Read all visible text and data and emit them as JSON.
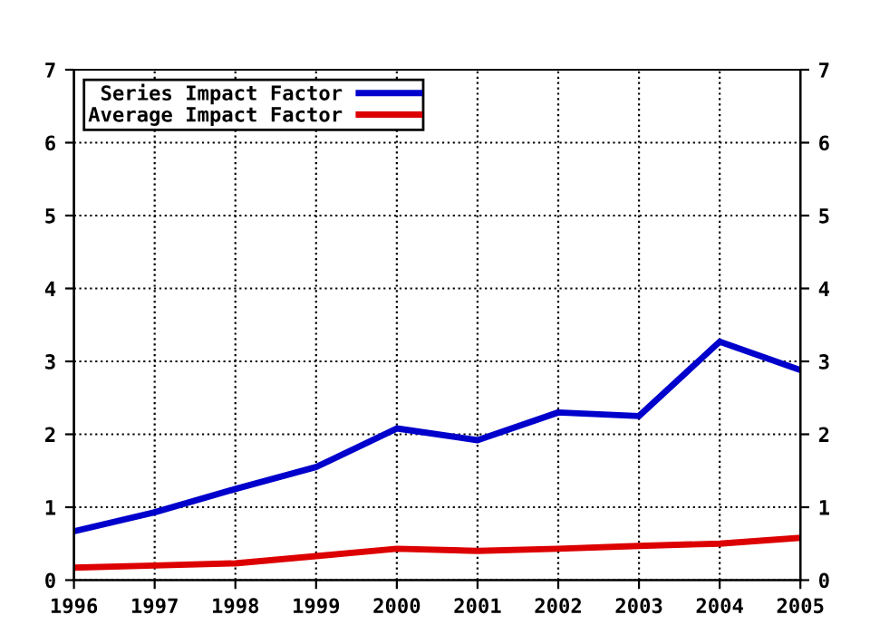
{
  "chart_data": {
    "type": "line",
    "x": [
      1996,
      1997,
      1998,
      1999,
      2000,
      2001,
      2002,
      2003,
      2004,
      2005
    ],
    "series": [
      {
        "name": "Series Impact Factor",
        "color": "#0000cc",
        "values": [
          0.67,
          0.93,
          1.25,
          1.55,
          2.08,
          1.92,
          2.3,
          2.25,
          3.27,
          2.88
        ]
      },
      {
        "name": "Average Impact Factor",
        "color": "#dd0000",
        "values": [
          0.17,
          0.2,
          0.23,
          0.33,
          0.43,
          0.4,
          0.43,
          0.47,
          0.5,
          0.58
        ]
      }
    ],
    "xlim": [
      1996,
      2005
    ],
    "xticks": [
      1996,
      1997,
      1998,
      1999,
      2000,
      2001,
      2002,
      2003,
      2004,
      2005
    ],
    "ylim": [
      0,
      7
    ],
    "yticks": [
      0,
      1,
      2,
      3,
      4,
      5,
      6,
      7
    ],
    "y2lim": [
      0,
      7
    ],
    "y2ticks": [
      0,
      1,
      2,
      3,
      4,
      5,
      6,
      7
    ],
    "grid": true,
    "legend": "top left",
    "line_style": "solid",
    "marker": "none"
  }
}
